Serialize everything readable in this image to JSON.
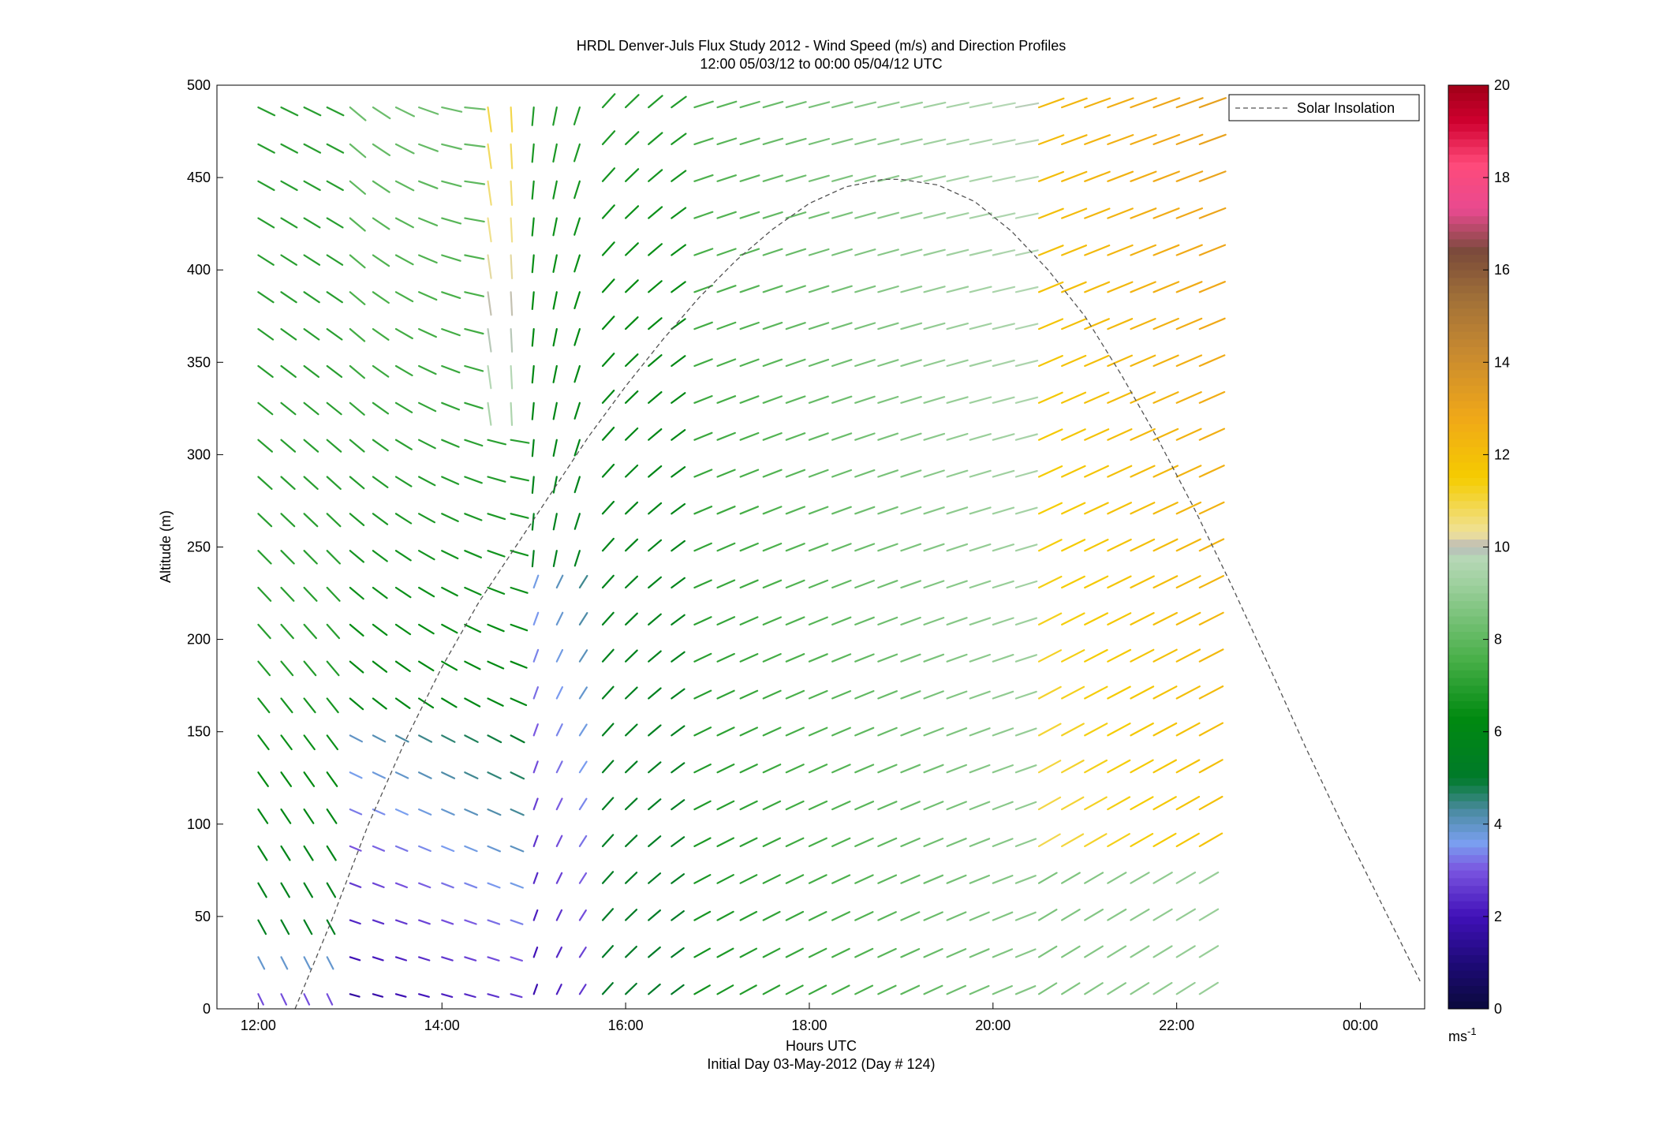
{
  "chart_data": {
    "type": "quiver",
    "title": "HRDL Denver-Juls Flux Study 2012 - Wind Speed (m/s) and Direction Profiles",
    "subtitle": "12:00 05/03/12 to 00:00 05/04/12  UTC",
    "xlabel": "Hours UTC",
    "xlabel2": "Initial Day 03-May-2012 (Day # 124)",
    "ylabel": "Altitude (m)",
    "xlim": [
      11.55,
      24.7
    ],
    "ylim": [
      0,
      500
    ],
    "x_ticks": [
      12,
      14,
      16,
      18,
      20,
      22,
      24
    ],
    "x_tick_labels": [
      "12:00",
      "14:00",
      "16:00",
      "18:00",
      "20:00",
      "22:00",
      "00:00"
    ],
    "y_ticks": [
      0,
      50,
      100,
      150,
      200,
      250,
      300,
      350,
      400,
      450,
      500
    ],
    "y_tick_labels": [
      "0",
      "50",
      "100",
      "150",
      "200",
      "250",
      "300",
      "350",
      "400",
      "450",
      "500"
    ],
    "legend": {
      "placement": "top-right",
      "entries": [
        {
          "name": "Solar Insolation",
          "style": "dashed",
          "color": "#555555"
        }
      ]
    },
    "solar_insolation": {
      "x": [
        12.4,
        12.8,
        13.2,
        13.6,
        14.0,
        14.4,
        14.8,
        15.2,
        15.6,
        16.0,
        16.4,
        16.8,
        17.2,
        17.6,
        18.0,
        18.4,
        18.8,
        19.0,
        19.4,
        19.8,
        20.2,
        20.6,
        21.0,
        21.4,
        21.8,
        22.2,
        22.6,
        23.0,
        23.4,
        23.8,
        24.2,
        24.65
      ],
      "y": [
        0,
        48,
        100,
        145,
        185,
        220,
        250,
        280,
        310,
        337,
        362,
        385,
        405,
        422,
        436,
        445,
        449,
        449,
        446,
        437,
        421,
        400,
        375,
        343,
        308,
        270,
        229,
        186,
        142,
        100,
        60,
        15
      ]
    },
    "wind_field": {
      "time_start": 12.0,
      "time_step": 0.25,
      "time_count": 42,
      "altitude_start": 8,
      "altitude_step": 20,
      "altitude_count": 25,
      "wind_speed_units": "m/s",
      "wind_direction_convention": "meteorological (degrees, from)"
    },
    "colorbar": {
      "label": "ms-1",
      "range": [
        0,
        20
      ],
      "ticks": [
        0,
        2,
        4,
        6,
        8,
        10,
        12,
        14,
        16,
        18,
        20
      ],
      "tick_labels": [
        "0",
        "2",
        "4",
        "6",
        "8",
        "10",
        "12",
        "14",
        "16",
        "18",
        "20"
      ],
      "colormap_stops": [
        {
          "value": 0,
          "color": "#0a0a3c"
        },
        {
          "value": 1.0,
          "color": "#1e0a78"
        },
        {
          "value": 2.0,
          "color": "#4010b8"
        },
        {
          "value": 3.0,
          "color": "#7a55e0"
        },
        {
          "value": 3.6,
          "color": "#7aa0f0"
        },
        {
          "value": 4.3,
          "color": "#4a8aa0"
        },
        {
          "value": 5.0,
          "color": "#007a2a"
        },
        {
          "value": 6.3,
          "color": "#008a10"
        },
        {
          "value": 7.6,
          "color": "#4ab04a"
        },
        {
          "value": 9.2,
          "color": "#9ed09e"
        },
        {
          "value": 9.8,
          "color": "#b8d8b8"
        },
        {
          "value": 10.0,
          "color": "#b8b8b8"
        },
        {
          "value": 10.3,
          "color": "#f0e29a"
        },
        {
          "value": 11.5,
          "color": "#f5cc00"
        },
        {
          "value": 12.8,
          "color": "#f0a818"
        },
        {
          "value": 14.2,
          "color": "#c88a30"
        },
        {
          "value": 15.4,
          "color": "#a07038"
        },
        {
          "value": 16.4,
          "color": "#7a4a3a"
        },
        {
          "value": 17.3,
          "color": "#e84a90"
        },
        {
          "value": 18.3,
          "color": "#ff4a7a"
        },
        {
          "value": 19.2,
          "color": "#d00030"
        },
        {
          "value": 20,
          "color": "#a00018"
        }
      ]
    }
  }
}
